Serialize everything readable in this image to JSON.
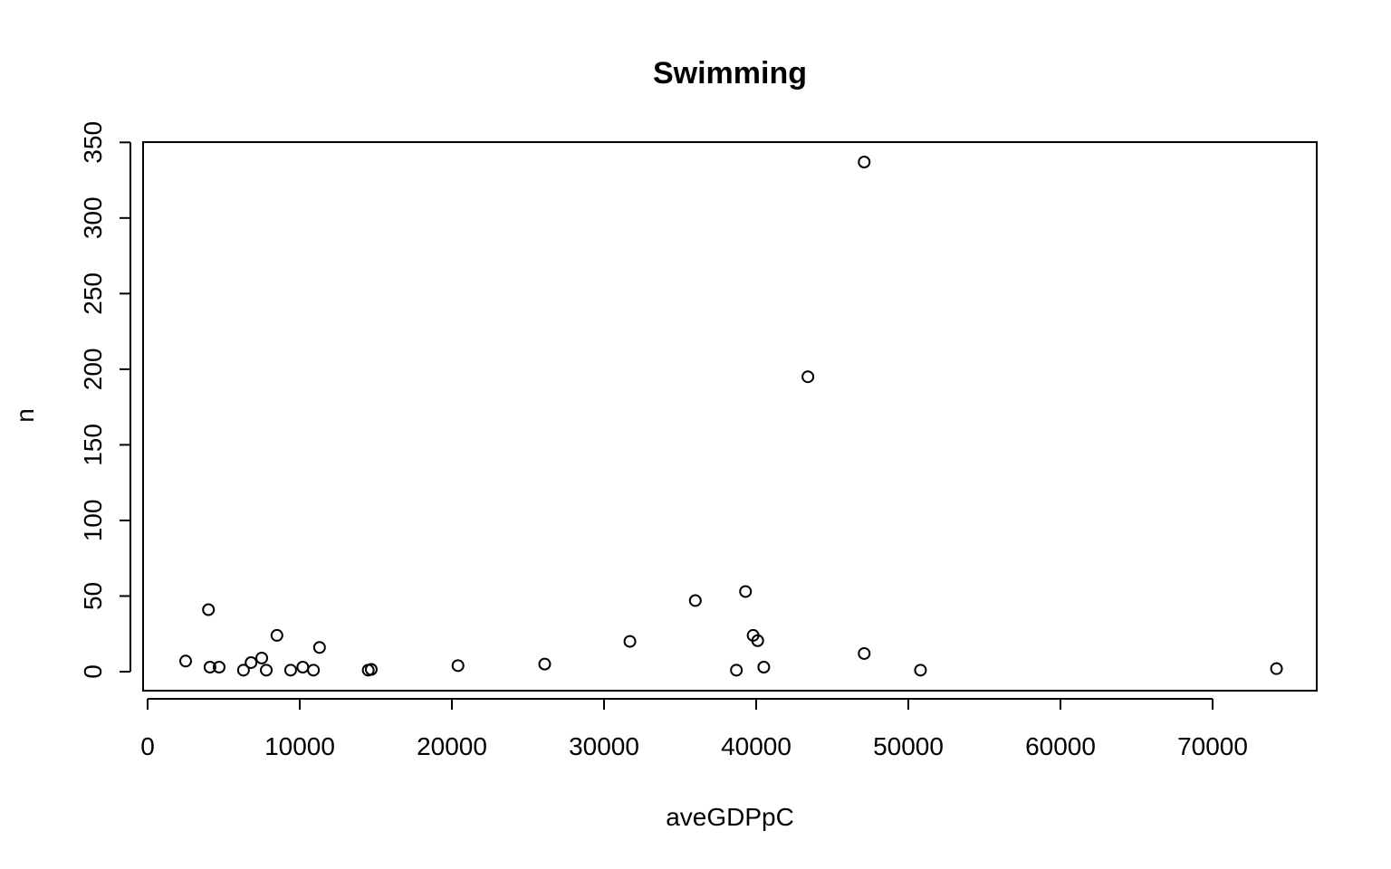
{
  "chart_data": {
    "type": "scatter",
    "title": "Swimming",
    "xlabel": "aveGDPpC",
    "ylabel": "n",
    "xlim": [
      0,
      76000
    ],
    "ylim": [
      -10,
      352
    ],
    "xticks": [
      0,
      10000,
      20000,
      30000,
      40000,
      50000,
      60000,
      70000
    ],
    "xtick_labels": [
      "0",
      "10000",
      "20000",
      "30000",
      "40000",
      "50000",
      "60000",
      "70000"
    ],
    "yticks": [
      0,
      50,
      100,
      150,
      200,
      250,
      300,
      350
    ],
    "ytick_labels": [
      "0",
      "50",
      "100",
      "150",
      "200",
      "250",
      "300",
      "350"
    ],
    "grid": false,
    "legend": "none",
    "marker": "open-circle",
    "colors": {
      "points": "#000000",
      "axes": "#000000",
      "background": "#ffffff"
    },
    "points": [
      {
        "x": 2500,
        "y": 7
      },
      {
        "x": 4000,
        "y": 41
      },
      {
        "x": 4100,
        "y": 3
      },
      {
        "x": 4700,
        "y": 3
      },
      {
        "x": 6300,
        "y": 1
      },
      {
        "x": 6800,
        "y": 6
      },
      {
        "x": 7500,
        "y": 9
      },
      {
        "x": 7800,
        "y": 1
      },
      {
        "x": 8500,
        "y": 24
      },
      {
        "x": 9400,
        "y": 1
      },
      {
        "x": 10200,
        "y": 3
      },
      {
        "x": 10900,
        "y": 1
      },
      {
        "x": 11300,
        "y": 16
      },
      {
        "x": 14500,
        "y": 1
      },
      {
        "x": 14700,
        "y": 1.5
      },
      {
        "x": 20400,
        "y": 4
      },
      {
        "x": 26100,
        "y": 5
      },
      {
        "x": 31700,
        "y": 20
      },
      {
        "x": 36000,
        "y": 47
      },
      {
        "x": 38700,
        "y": 1
      },
      {
        "x": 39300,
        "y": 53
      },
      {
        "x": 39800,
        "y": 24
      },
      {
        "x": 40100,
        "y": 20.5
      },
      {
        "x": 40500,
        "y": 3
      },
      {
        "x": 43400,
        "y": 195
      },
      {
        "x": 47100,
        "y": 337
      },
      {
        "x": 47100,
        "y": 12
      },
      {
        "x": 50800,
        "y": 1
      },
      {
        "x": 74200,
        "y": 2
      }
    ]
  }
}
